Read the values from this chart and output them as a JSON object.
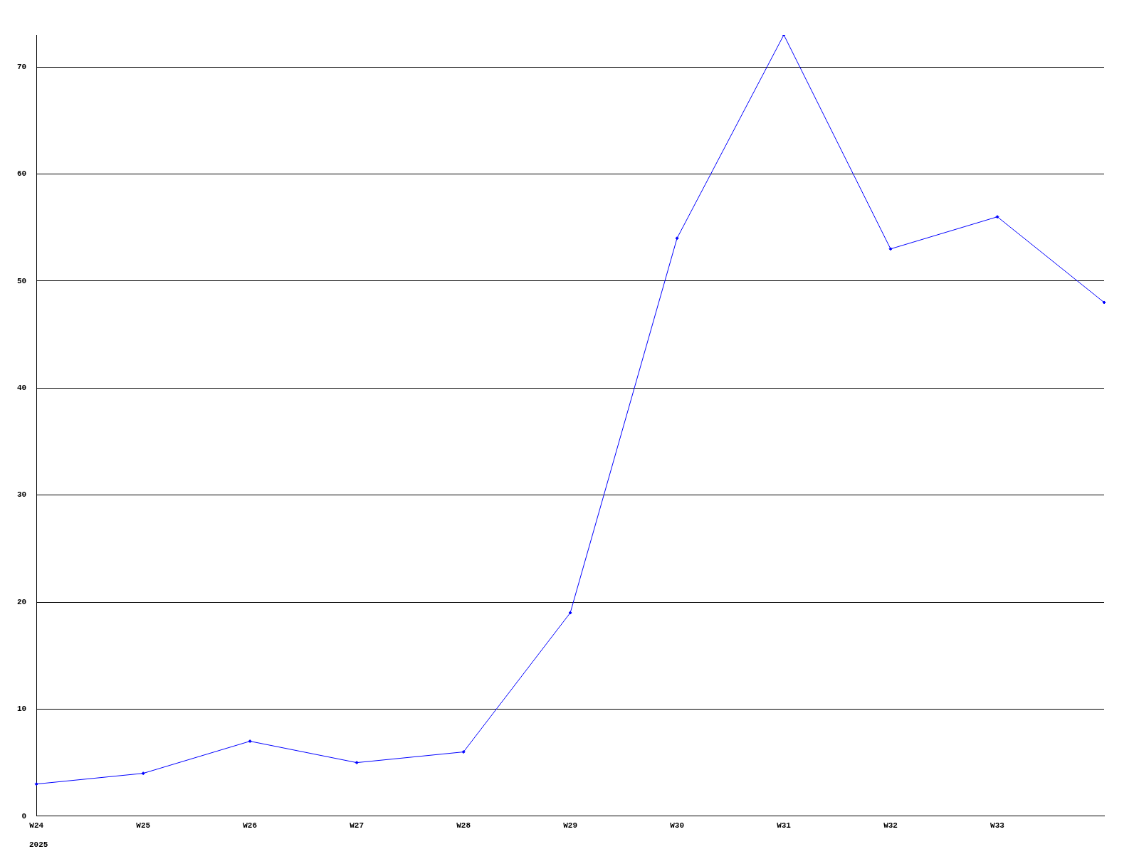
{
  "chart_data": {
    "type": "line",
    "categories": [
      "W24",
      "W25",
      "W26",
      "W27",
      "W28",
      "W29",
      "W30",
      "W31",
      "W32",
      "W33",
      null
    ],
    "series": [
      {
        "color": "#0000ff",
        "values": [
          3,
          4,
          7,
          5,
          6,
          19,
          54,
          73,
          53,
          56,
          48
        ]
      }
    ],
    "ylim": [
      0,
      73
    ],
    "yticks": [
      0,
      10,
      20,
      30,
      40,
      50,
      60,
      70
    ],
    "grid": "y",
    "legend": false,
    "marker": "diamond",
    "line_style": "solid",
    "annotations": [
      "2025"
    ]
  }
}
